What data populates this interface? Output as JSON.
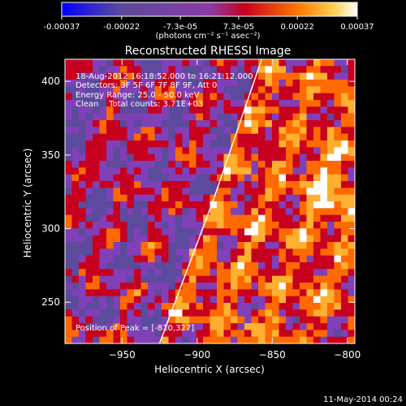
{
  "chart_data": {
    "type": "heatmap",
    "title": "Reconstructed RHESSI Image",
    "xlabel": "Heliocentric X (arcsec)",
    "ylabel": "Heliocentric Y (arcsec)",
    "xlim": [
      -988,
      -795
    ],
    "ylim": [
      222,
      415
    ],
    "xticks": [
      -950,
      -900,
      -850,
      -800
    ],
    "yticks": [
      250,
      300,
      350,
      400
    ],
    "colorbar": {
      "ticks": [
        "-0.00037",
        "-0.00022",
        "-7.3e-05",
        "7.3e-05",
        "0.00022",
        "0.00037"
      ],
      "tick_values": [
        -0.00037,
        -0.00022,
        -7.3e-05,
        7.3e-05,
        0.00022,
        0.00037
      ],
      "range": [
        -0.00037,
        0.00037
      ],
      "unit_label": "(photons cm⁻² s⁻¹ asec⁻²)"
    },
    "annotations": [
      "18-Aug-2012 16:18:52.000 to 16:21:12.000",
      "Detectors: 3F 5F 6F 7F 8F 9F, Att 0",
      "Energy Range: 25.0 - 50.0 keV",
      "Clean    Total counts: 3.71E+03",
      "Position of Peak = [-810,327]"
    ],
    "peak": [
      -810,
      327
    ],
    "limb_line": {
      "x": [
        -925,
        -889,
        -857
      ],
      "y": [
        222,
        320,
        415
      ]
    },
    "grid": false
  },
  "footer": {
    "date": "11-May-2014 00:24"
  },
  "colors": {
    "background": "#000000",
    "text": "#ffffff",
    "colormap": [
      "#0000ff",
      "#5c4a9c",
      "#8040b8",
      "#c80020",
      "#ff6a00",
      "#ffb030",
      "#ffffff"
    ]
  }
}
